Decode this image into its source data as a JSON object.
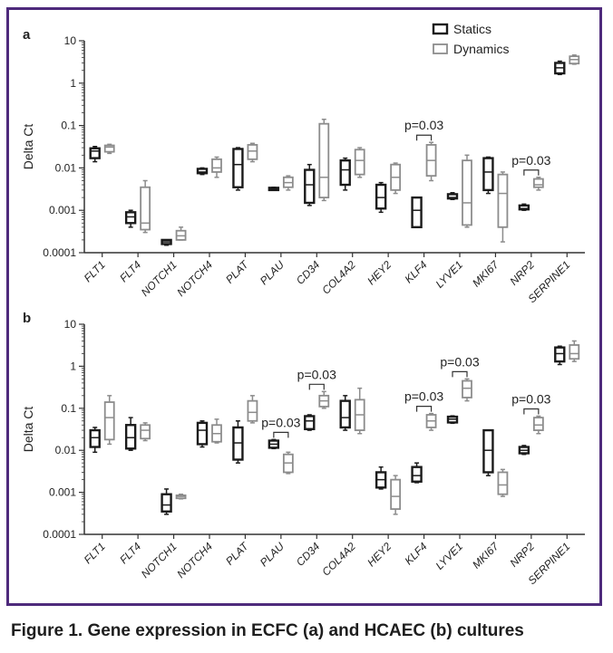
{
  "caption": "Figure 1. Gene expression in ECFC (a) and HCAEC (b) cultures",
  "colors": {
    "frame": "#4e2a7c",
    "statics": "#1a1a1a",
    "dynamics": "#8c8c8c",
    "axis": "#333333"
  },
  "legend": {
    "statics": "Statics",
    "dynamics": "Dynamics"
  },
  "chart_data": [
    {
      "type": "box",
      "panel": "a",
      "ylabel": "Delta Ct",
      "yscale": "log",
      "ylim": [
        0.0001,
        10
      ],
      "yticks": [
        "10",
        "1",
        "0.1",
        "0.01",
        "0.001",
        "0.0001"
      ],
      "categories": [
        "FLT1",
        "FLT4",
        "NOTCH1",
        "NOTCH4",
        "PLAT",
        "PLAU",
        "CD34",
        "COL4A2",
        "HEY2",
        "KLF4",
        "LYVE1",
        "MKI67",
        "NRP2",
        "SERPINE1"
      ],
      "series": [
        {
          "name": "Statics",
          "boxes": [
            [
              0.014,
              0.017,
              0.025,
              0.029,
              0.032
            ],
            [
              0.0004,
              0.0005,
              0.0007,
              0.0009,
              0.001
            ],
            [
              0.00015,
              0.00016,
              0.00018,
              0.0002,
              0.0002
            ],
            [
              0.007,
              0.0075,
              0.008,
              0.0095,
              0.01
            ],
            [
              0.003,
              0.0035,
              0.012,
              0.028,
              0.03
            ],
            [
              0.003,
              0.003,
              0.0032,
              0.0034,
              0.0035
            ],
            [
              0.0013,
              0.0015,
              0.004,
              0.009,
              0.012
            ],
            [
              0.003,
              0.004,
              0.009,
              0.015,
              0.017
            ],
            [
              0.0009,
              0.0011,
              0.002,
              0.004,
              0.0045
            ],
            [
              0.0004,
              0.0004,
              0.001,
              0.002,
              0.002
            ],
            [
              0.0018,
              0.0019,
              0.002,
              0.0024,
              0.0026
            ],
            [
              0.0025,
              0.003,
              0.008,
              0.017,
              0.018
            ],
            [
              0.001,
              0.00105,
              0.0011,
              0.0013,
              0.0014
            ],
            [
              1.6,
              1.7,
              2.3,
              3.0,
              3.3
            ]
          ]
        },
        {
          "name": "Dynamics",
          "boxes": [
            [
              0.022,
              0.024,
              0.031,
              0.034,
              0.036
            ],
            [
              0.0003,
              0.00035,
              0.0005,
              0.0035,
              0.005
            ],
            [
              0.0002,
              0.0002,
              0.00025,
              0.00033,
              0.0004
            ],
            [
              0.006,
              0.008,
              0.01,
              0.016,
              0.018
            ],
            [
              0.014,
              0.016,
              0.025,
              0.035,
              0.038
            ],
            [
              0.003,
              0.0035,
              0.0045,
              0.006,
              0.0065
            ],
            [
              0.0017,
              0.002,
              0.006,
              0.11,
              0.14
            ],
            [
              0.006,
              0.007,
              0.015,
              0.027,
              0.03
            ],
            [
              0.0025,
              0.003,
              0.006,
              0.012,
              0.013
            ],
            [
              0.005,
              0.0065,
              0.015,
              0.035,
              0.04
            ],
            [
              0.0004,
              0.00045,
              0.0015,
              0.015,
              0.02
            ],
            [
              0.00018,
              0.0004,
              0.0025,
              0.007,
              0.008
            ],
            [
              0.003,
              0.0035,
              0.004,
              0.0055,
              0.006
            ],
            [
              2.8,
              2.9,
              3.6,
              4.3,
              4.6
            ]
          ]
        }
      ],
      "annotations": [
        {
          "label": "p=0.03",
          "category": "KLF4"
        },
        {
          "label": "p=0.03",
          "category": "NRP2"
        }
      ]
    },
    {
      "type": "box",
      "panel": "b",
      "ylabel": "Delta Ct",
      "yscale": "log",
      "ylim": [
        0.0001,
        10
      ],
      "yticks": [
        "10",
        "1",
        "0.1",
        "0.01",
        "0.001",
        "0.0001"
      ],
      "categories": [
        "FLT1",
        "FLT4",
        "NOTCH1",
        "NOTCH4",
        "PLAT",
        "PLAU",
        "CD34",
        "COL4A2",
        "HEY2",
        "KLF4",
        "LYVE1",
        "MKI67",
        "NRP2",
        "SERPINE1"
      ],
      "series": [
        {
          "name": "Statics",
          "boxes": [
            [
              0.009,
              0.012,
              0.02,
              0.03,
              0.035
            ],
            [
              0.01,
              0.011,
              0.02,
              0.04,
              0.06
            ],
            [
              0.0003,
              0.00035,
              0.0005,
              0.0009,
              0.0012
            ],
            [
              0.012,
              0.014,
              0.03,
              0.045,
              0.05
            ],
            [
              0.005,
              0.006,
              0.015,
              0.035,
              0.05
            ],
            [
              0.011,
              0.0115,
              0.014,
              0.017,
              0.018
            ],
            [
              0.03,
              0.032,
              0.05,
              0.065,
              0.07
            ],
            [
              0.03,
              0.035,
              0.06,
              0.15,
              0.2
            ],
            [
              0.0012,
              0.0013,
              0.002,
              0.003,
              0.004
            ],
            [
              0.0017,
              0.0018,
              0.0025,
              0.004,
              0.005
            ],
            [
              0.044,
              0.046,
              0.055,
              0.063,
              0.066
            ],
            [
              0.0025,
              0.003,
              0.01,
              0.03,
              0.03
            ],
            [
              0.008,
              0.0085,
              0.01,
              0.012,
              0.013
            ],
            [
              1.1,
              1.3,
              2.0,
              2.8,
              3.0
            ]
          ]
        },
        {
          "name": "Dynamics",
          "boxes": [
            [
              0.014,
              0.018,
              0.06,
              0.14,
              0.2
            ],
            [
              0.017,
              0.019,
              0.03,
              0.04,
              0.045
            ],
            [
              0.0007,
              0.00072,
              0.0008,
              0.00085,
              0.0009
            ],
            [
              0.015,
              0.016,
              0.025,
              0.04,
              0.055
            ],
            [
              0.045,
              0.05,
              0.08,
              0.15,
              0.2
            ],
            [
              0.0028,
              0.003,
              0.005,
              0.008,
              0.009
            ],
            [
              0.1,
              0.11,
              0.15,
              0.2,
              0.25
            ],
            [
              0.025,
              0.03,
              0.07,
              0.16,
              0.3
            ],
            [
              0.0003,
              0.0004,
              0.0008,
              0.002,
              0.0025
            ],
            [
              0.03,
              0.035,
              0.05,
              0.07,
              0.075
            ],
            [
              0.15,
              0.18,
              0.3,
              0.45,
              0.5
            ],
            [
              0.0008,
              0.0009,
              0.0015,
              0.003,
              0.0035
            ],
            [
              0.025,
              0.03,
              0.04,
              0.06,
              0.065
            ],
            [
              1.3,
              1.5,
              2.0,
              3.2,
              4.0
            ]
          ]
        }
      ],
      "annotations": [
        {
          "label": "p=0.03",
          "category": "PLAU"
        },
        {
          "label": "p=0.03",
          "category": "CD34"
        },
        {
          "label": "p=0.03",
          "category": "KLF4"
        },
        {
          "label": "p=0.03",
          "category": "LYVE1"
        },
        {
          "label": "p=0.03",
          "category": "NRP2"
        }
      ]
    }
  ]
}
